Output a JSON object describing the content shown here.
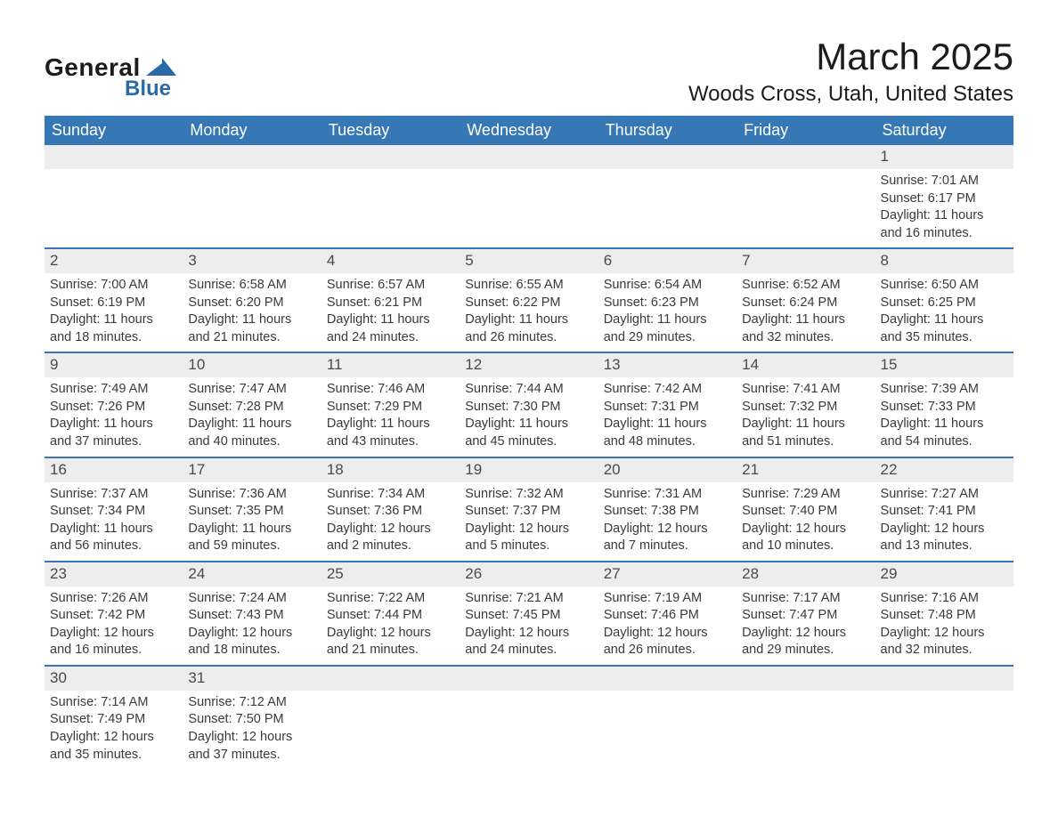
{
  "logo": {
    "main": "General",
    "sub": "Blue"
  },
  "title": "March 2025",
  "location": "Woods Cross, Utah, United States",
  "colors": {
    "header_bg": "#3678b5",
    "header_text": "#ffffff",
    "daynum_bg": "#ededed",
    "text": "#3a3a3a",
    "border": "#3678b5",
    "page_bg": "#ffffff"
  },
  "fonts": {
    "title_size": 42,
    "location_size": 24,
    "weekday_size": 18,
    "body_size": 14.5
  },
  "weekdays": [
    "Sunday",
    "Monday",
    "Tuesday",
    "Wednesday",
    "Thursday",
    "Friday",
    "Saturday"
  ],
  "labels": {
    "sunrise": "Sunrise:",
    "sunset": "Sunset:",
    "daylight": "Daylight:"
  },
  "weeks": [
    [
      null,
      null,
      null,
      null,
      null,
      null,
      {
        "n": 1,
        "sr": "7:01 AM",
        "ss": "6:17 PM",
        "dl": "11 hours and 16 minutes."
      }
    ],
    [
      {
        "n": 2,
        "sr": "7:00 AM",
        "ss": "6:19 PM",
        "dl": "11 hours and 18 minutes."
      },
      {
        "n": 3,
        "sr": "6:58 AM",
        "ss": "6:20 PM",
        "dl": "11 hours and 21 minutes."
      },
      {
        "n": 4,
        "sr": "6:57 AM",
        "ss": "6:21 PM",
        "dl": "11 hours and 24 minutes."
      },
      {
        "n": 5,
        "sr": "6:55 AM",
        "ss": "6:22 PM",
        "dl": "11 hours and 26 minutes."
      },
      {
        "n": 6,
        "sr": "6:54 AM",
        "ss": "6:23 PM",
        "dl": "11 hours and 29 minutes."
      },
      {
        "n": 7,
        "sr": "6:52 AM",
        "ss": "6:24 PM",
        "dl": "11 hours and 32 minutes."
      },
      {
        "n": 8,
        "sr": "6:50 AM",
        "ss": "6:25 PM",
        "dl": "11 hours and 35 minutes."
      }
    ],
    [
      {
        "n": 9,
        "sr": "7:49 AM",
        "ss": "7:26 PM",
        "dl": "11 hours and 37 minutes."
      },
      {
        "n": 10,
        "sr": "7:47 AM",
        "ss": "7:28 PM",
        "dl": "11 hours and 40 minutes."
      },
      {
        "n": 11,
        "sr": "7:46 AM",
        "ss": "7:29 PM",
        "dl": "11 hours and 43 minutes."
      },
      {
        "n": 12,
        "sr": "7:44 AM",
        "ss": "7:30 PM",
        "dl": "11 hours and 45 minutes."
      },
      {
        "n": 13,
        "sr": "7:42 AM",
        "ss": "7:31 PM",
        "dl": "11 hours and 48 minutes."
      },
      {
        "n": 14,
        "sr": "7:41 AM",
        "ss": "7:32 PM",
        "dl": "11 hours and 51 minutes."
      },
      {
        "n": 15,
        "sr": "7:39 AM",
        "ss": "7:33 PM",
        "dl": "11 hours and 54 minutes."
      }
    ],
    [
      {
        "n": 16,
        "sr": "7:37 AM",
        "ss": "7:34 PM",
        "dl": "11 hours and 56 minutes."
      },
      {
        "n": 17,
        "sr": "7:36 AM",
        "ss": "7:35 PM",
        "dl": "11 hours and 59 minutes."
      },
      {
        "n": 18,
        "sr": "7:34 AM",
        "ss": "7:36 PM",
        "dl": "12 hours and 2 minutes."
      },
      {
        "n": 19,
        "sr": "7:32 AM",
        "ss": "7:37 PM",
        "dl": "12 hours and 5 minutes."
      },
      {
        "n": 20,
        "sr": "7:31 AM",
        "ss": "7:38 PM",
        "dl": "12 hours and 7 minutes."
      },
      {
        "n": 21,
        "sr": "7:29 AM",
        "ss": "7:40 PM",
        "dl": "12 hours and 10 minutes."
      },
      {
        "n": 22,
        "sr": "7:27 AM",
        "ss": "7:41 PM",
        "dl": "12 hours and 13 minutes."
      }
    ],
    [
      {
        "n": 23,
        "sr": "7:26 AM",
        "ss": "7:42 PM",
        "dl": "12 hours and 16 minutes."
      },
      {
        "n": 24,
        "sr": "7:24 AM",
        "ss": "7:43 PM",
        "dl": "12 hours and 18 minutes."
      },
      {
        "n": 25,
        "sr": "7:22 AM",
        "ss": "7:44 PM",
        "dl": "12 hours and 21 minutes."
      },
      {
        "n": 26,
        "sr": "7:21 AM",
        "ss": "7:45 PM",
        "dl": "12 hours and 24 minutes."
      },
      {
        "n": 27,
        "sr": "7:19 AM",
        "ss": "7:46 PM",
        "dl": "12 hours and 26 minutes."
      },
      {
        "n": 28,
        "sr": "7:17 AM",
        "ss": "7:47 PM",
        "dl": "12 hours and 29 minutes."
      },
      {
        "n": 29,
        "sr": "7:16 AM",
        "ss": "7:48 PM",
        "dl": "12 hours and 32 minutes."
      }
    ],
    [
      {
        "n": 30,
        "sr": "7:14 AM",
        "ss": "7:49 PM",
        "dl": "12 hours and 35 minutes."
      },
      {
        "n": 31,
        "sr": "7:12 AM",
        "ss": "7:50 PM",
        "dl": "12 hours and 37 minutes."
      },
      null,
      null,
      null,
      null,
      null
    ]
  ]
}
